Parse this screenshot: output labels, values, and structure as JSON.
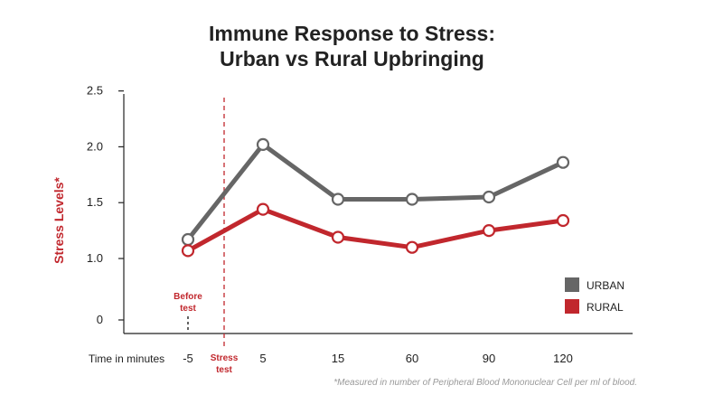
{
  "chart_data": {
    "type": "line",
    "title_lines": [
      "Immune Response to Stress:",
      "Urban vs Rural Upbringing"
    ],
    "ylabel": "Stress Levels*",
    "xlabel": "Time in minutes",
    "x_categories": [
      "-5",
      "5",
      "15",
      "60",
      "90",
      "120"
    ],
    "y_ticks": [
      "2.5",
      "2.0",
      "1.5",
      "1.0",
      "0"
    ],
    "y_tick_values": [
      2.5,
      2.0,
      1.5,
      1.0,
      0.45
    ],
    "y_axis_break": "0 shown at bottom of truncated axis",
    "grid": false,
    "legend_position": "bottom-right",
    "series": [
      {
        "name": "URBAN",
        "color": "#666666",
        "values": [
          1.17,
          2.02,
          1.53,
          1.53,
          1.55,
          1.86
        ]
      },
      {
        "name": "RURAL",
        "color": "#c1272d",
        "values": [
          1.07,
          1.44,
          1.19,
          1.1,
          1.25,
          1.34
        ]
      }
    ],
    "annotations": {
      "before_test": "Before test",
      "stress_test": "Stress test",
      "stress_test_position": "between -5 and 5",
      "accent_color": "#c1272d"
    },
    "footnote": "*Measured in number of Peripheral Blood Mononuclear Cell per ml of blood."
  }
}
